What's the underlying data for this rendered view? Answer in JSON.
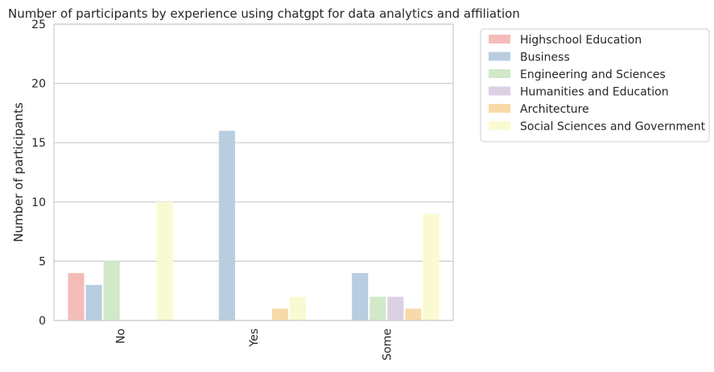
{
  "chart_data": {
    "type": "bar",
    "title": "Number of participants by experience using chatgpt for data analytics and affiliation",
    "xlabel": "",
    "ylabel": "Number of participants",
    "categories": [
      "No",
      "Yes",
      "Some"
    ],
    "ylim": [
      0,
      25
    ],
    "yticks": [
      0,
      5,
      10,
      15,
      20,
      25
    ],
    "grid": true,
    "legend_position": "outside-right",
    "series": [
      {
        "name": "Highschool Education",
        "color": "#f4bcb8",
        "values": [
          4,
          0,
          0
        ]
      },
      {
        "name": "Business",
        "color": "#b8cde0",
        "values": [
          3,
          16,
          4
        ]
      },
      {
        "name": "Engineering and Sciences",
        "color": "#d1e8c9",
        "values": [
          5,
          0,
          2
        ]
      },
      {
        "name": "Humanities and Education",
        "color": "#dcd0e5",
        "values": [
          0,
          0,
          2
        ]
      },
      {
        "name": "Architecture",
        "color": "#f8d9a8",
        "values": [
          0,
          1,
          1
        ]
      },
      {
        "name": "Social Sciences and Government",
        "color": "#fafad2",
        "values": [
          10,
          2,
          9
        ]
      }
    ]
  }
}
